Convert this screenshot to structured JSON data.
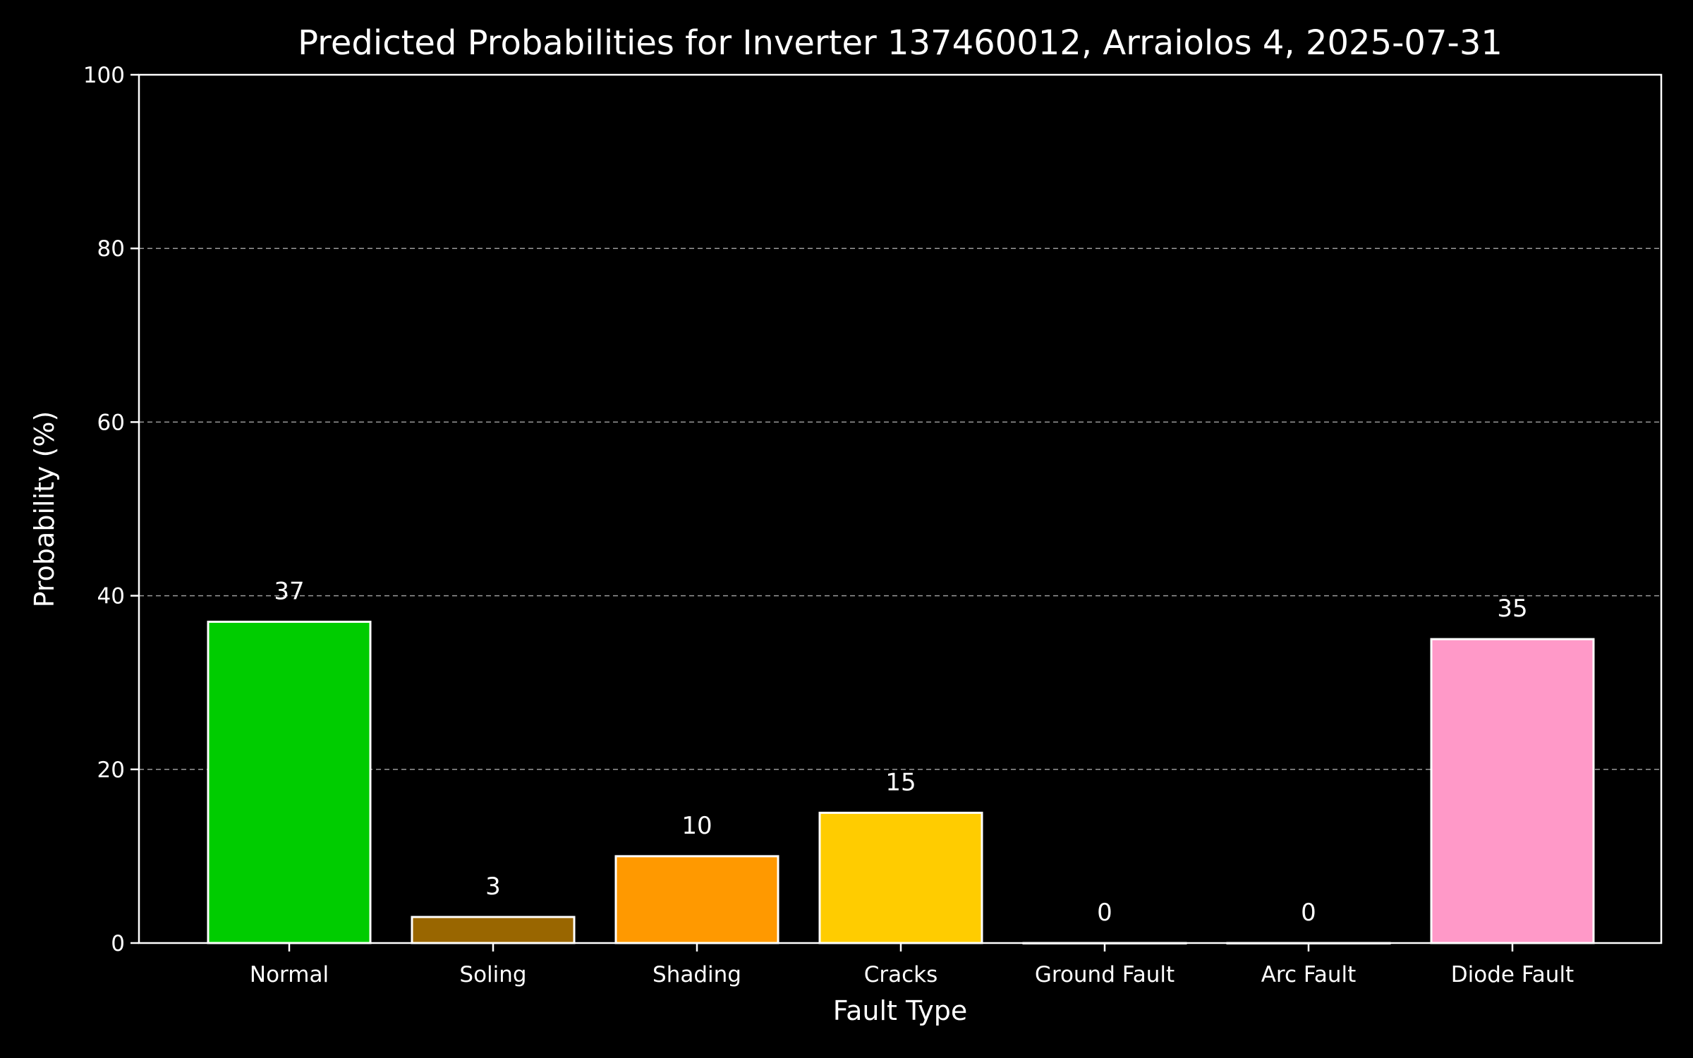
{
  "chart_data": {
    "type": "bar",
    "title": "Predicted Probabilities for Inverter 137460012, Arraiolos 4, 2025-07-31",
    "xlabel": "Fault Type",
    "ylabel": "Probability (%)",
    "ylim": [
      0,
      100
    ],
    "yticks": [
      0,
      20,
      40,
      60,
      80,
      100
    ],
    "grid": "y-dashed",
    "categories": [
      "Normal",
      "Soling",
      "Shading",
      "Cracks",
      "Ground Fault",
      "Arc Fault",
      "Diode Fault"
    ],
    "values": [
      37,
      3,
      10,
      15,
      0,
      0,
      35
    ],
    "data_labels": [
      "37",
      "3",
      "10",
      "15",
      "0",
      "0",
      "35"
    ],
    "colors": [
      "#00cc00",
      "#996600",
      "#ff9900",
      "#ffcc00",
      "#000000",
      "#000000",
      "#ff99c8"
    ],
    "background": "#000000",
    "foreground": "#ffffff"
  }
}
